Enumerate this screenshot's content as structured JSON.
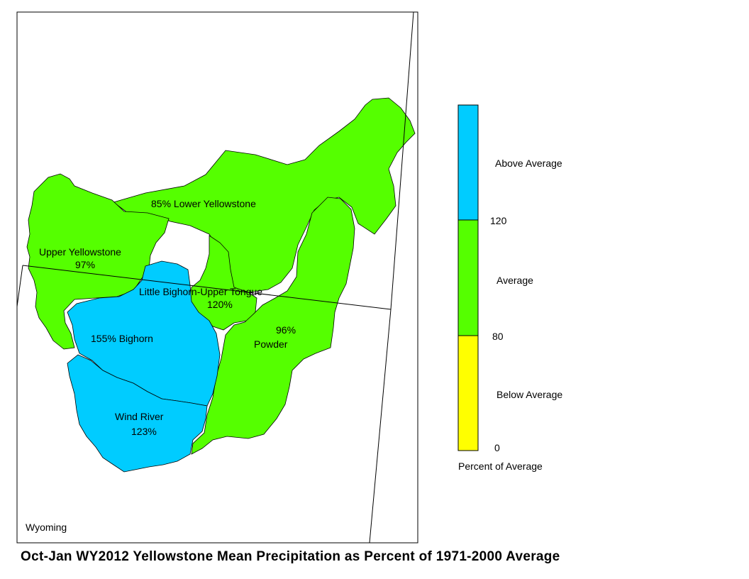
{
  "title": "Oct-Jan WY2012 Yellowstone Mean Precipitation as Percent of 1971-2000 Average",
  "state_label": "Wyoming",
  "colors": {
    "above": "#00ccff",
    "average": "#55ff00",
    "below": "#ffff00"
  },
  "basins": [
    {
      "id": "lower-yellowstone",
      "name": "Lower Yellowstone",
      "percent": "85%",
      "category": "average"
    },
    {
      "id": "upper-yellowstone",
      "name": "Upper Yellowstone",
      "percent": "97%",
      "category": "average"
    },
    {
      "id": "little-bighorn-upper-tongue",
      "name": "Little Bighorn-Upper Tongue",
      "percent": "120%",
      "category": "average"
    },
    {
      "id": "powder",
      "name": "Powder",
      "percent": "96%",
      "category": "average"
    },
    {
      "id": "bighorn",
      "name": "Bighorn",
      "percent": "155%",
      "category": "above"
    },
    {
      "id": "wind-river",
      "name": "Wind River",
      "percent": "123%",
      "category": "above"
    }
  ],
  "labels": {
    "lower_yellowstone": "85%  Lower Yellowstone",
    "upper_yellowstone_name": "Upper Yellowstone",
    "upper_yellowstone_pct": "97%",
    "lbt_name": "Little Bighorn-Upper Tongue",
    "lbt_pct": "120%",
    "powder_pct": "96%",
    "powder_name": "Powder",
    "bighorn": "155%   Bighorn",
    "wind_name": "Wind River",
    "wind_pct": "123%"
  },
  "legend": {
    "title": "Percent of Average",
    "categories": [
      {
        "label": "Above Average",
        "color": "#00ccff"
      },
      {
        "label": "Average",
        "color": "#55ff00"
      },
      {
        "label": "Below Average",
        "color": "#ffff00"
      }
    ],
    "ticks": [
      "120",
      "80",
      "0"
    ]
  }
}
